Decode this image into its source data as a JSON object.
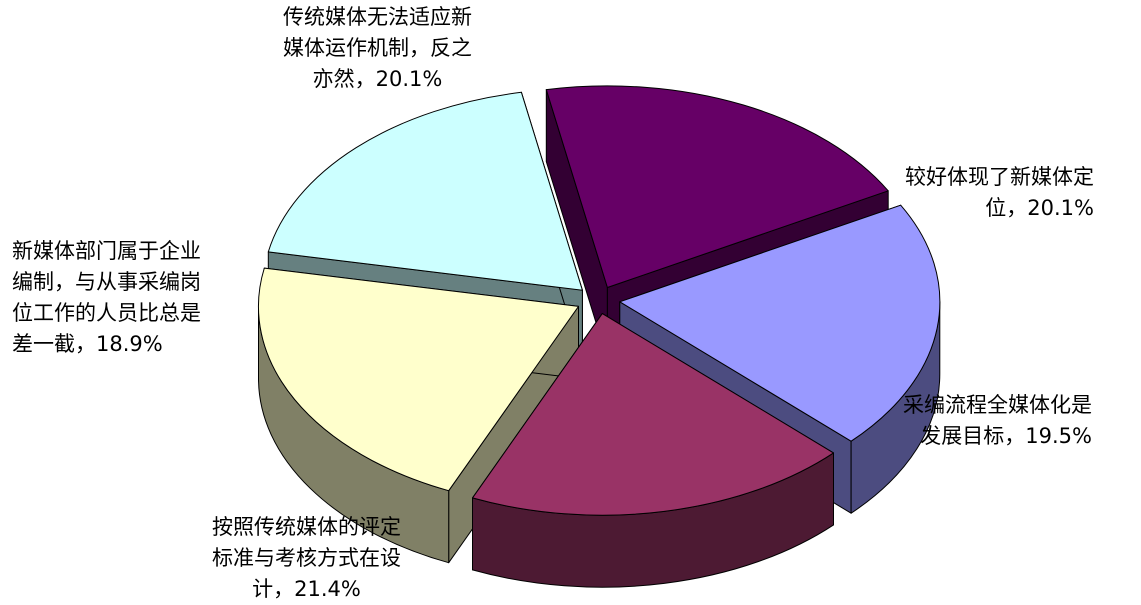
{
  "chart_data": {
    "type": "pie",
    "style": "3d-exploded",
    "legend": "none",
    "slices": [
      {
        "label_lines": [
          "传统媒体无法适应新",
          "媒体运作机制，反之",
          "亦然，20.1%"
        ],
        "value": 20.1,
        "top_color": "#660066",
        "side_color": "#330033"
      },
      {
        "label_lines": [
          "较好体现了新媒体定",
          "位，20.1%"
        ],
        "value": 20.1,
        "top_color": "#9999ff",
        "side_color": "#4c4c80"
      },
      {
        "label_lines": [
          "采编流程全媒体化是",
          "发展目标，19.5%"
        ],
        "value": 19.5,
        "top_color": "#993366",
        "side_color": "#4d1a33"
      },
      {
        "label_lines": [
          "按照传统媒体的评定",
          "标准与考核方式在设",
          "计，21.4%"
        ],
        "value": 21.4,
        "top_color": "#ffffcc",
        "side_color": "#808066"
      },
      {
        "label_lines": [
          "新媒体部门属于企业",
          "编制，与从事采编岗",
          "位工作的人员比总是",
          "差一截，18.9%"
        ],
        "value": 18.9,
        "top_color": "#ccffff",
        "side_color": "#668080"
      }
    ]
  }
}
